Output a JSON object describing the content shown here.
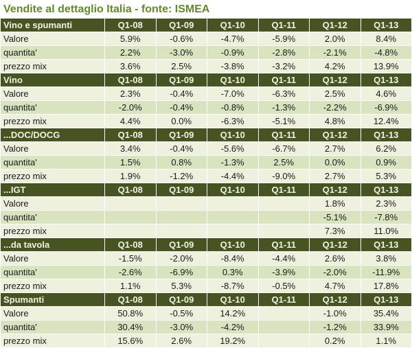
{
  "title": "Vendite al dettaglio Italia - fonte: ISMEA",
  "columns": [
    "Q1-08",
    "Q1-09",
    "Q1-10",
    "Q1-11",
    "Q1-12",
    "Q1-13"
  ],
  "sections": [
    {
      "name": "Vino e spumanti",
      "rows": [
        {
          "label": "Valore",
          "values": [
            "5.9%",
            "-0.6%",
            "-4.7%",
            "-5.9%",
            "2.0%",
            "8.4%"
          ]
        },
        {
          "label": "quantita'",
          "values": [
            "2.2%",
            "-3.0%",
            "-0.9%",
            "-2.8%",
            "-2.1%",
            "-4.8%"
          ]
        },
        {
          "label": "prezzo mix",
          "values": [
            "3.6%",
            "2.5%",
            "-3.8%",
            "-3.2%",
            "4.2%",
            "13.9%"
          ]
        }
      ]
    },
    {
      "name": "Vino",
      "rows": [
        {
          "label": "Valore",
          "values": [
            "2.3%",
            "-0.4%",
            "-7.0%",
            "-6.3%",
            "2.5%",
            "4.6%"
          ]
        },
        {
          "label": "quantita'",
          "values": [
            "-2.0%",
            "-0.4%",
            "-0.8%",
            "-1.3%",
            "-2.2%",
            "-6.9%"
          ]
        },
        {
          "label": "prezzo mix",
          "values": [
            "4.4%",
            "0.0%",
            "-6.3%",
            "-5.1%",
            "4.8%",
            "12.4%"
          ]
        }
      ]
    },
    {
      "name": "...DOC/DOCG",
      "rows": [
        {
          "label": "Valore",
          "values": [
            "3.4%",
            "-0.4%",
            "-5.6%",
            "-6.7%",
            "2.7%",
            "6.2%"
          ]
        },
        {
          "label": "quantita'",
          "values": [
            "1.5%",
            "0.8%",
            "-1.3%",
            "2.5%",
            "0.0%",
            "0.9%"
          ]
        },
        {
          "label": "prezzo mix",
          "values": [
            "1.9%",
            "-1.2%",
            "-4.4%",
            "-9.0%",
            "2.7%",
            "5.3%"
          ]
        }
      ]
    },
    {
      "name": "...IGT",
      "rows": [
        {
          "label": "Valore",
          "values": [
            "",
            "",
            "",
            "",
            "1.8%",
            "2.3%"
          ]
        },
        {
          "label": "quantita'",
          "values": [
            "",
            "",
            "",
            "",
            "-5.1%",
            "-7.8%"
          ]
        },
        {
          "label": "prezzo mix",
          "values": [
            "",
            "",
            "",
            "",
            "7.3%",
            "11.0%"
          ]
        }
      ]
    },
    {
      "name": "...da tavola",
      "rows": [
        {
          "label": "Valore",
          "values": [
            "-1.5%",
            "-2.0%",
            "-8.4%",
            "-4.4%",
            "2.6%",
            "3.8%"
          ]
        },
        {
          "label": "quantita'",
          "values": [
            "-2.6%",
            "-6.9%",
            "0.3%",
            "-3.9%",
            "-2.0%",
            "-11.9%"
          ]
        },
        {
          "label": "prezzo mix",
          "values": [
            "1.1%",
            "5.3%",
            "-8.7%",
            "-0.5%",
            "4.7%",
            "17.8%"
          ]
        }
      ]
    },
    {
      "name": "Spumanti",
      "rows": [
        {
          "label": "Valore",
          "values": [
            "50.8%",
            "-0.5%",
            "14.2%",
            "",
            "-1.0%",
            "35.4%"
          ]
        },
        {
          "label": "quantita'",
          "values": [
            "30.4%",
            "-3.0%",
            "-4.2%",
            "",
            "-1.2%",
            "33.9%"
          ]
        },
        {
          "label": "prezzo mix",
          "values": [
            "15.6%",
            "2.6%",
            "19.2%",
            "",
            "0.2%",
            "1.1%"
          ]
        }
      ]
    }
  ],
  "colors": {
    "title_text": "#628a2c",
    "header_bg": "#475322",
    "header_text": "#f2f2e2",
    "row_light": "#eef1de",
    "row_mid": "#d9e3c0",
    "grid": "#ffffff",
    "data_text": "#1a1a1a"
  }
}
